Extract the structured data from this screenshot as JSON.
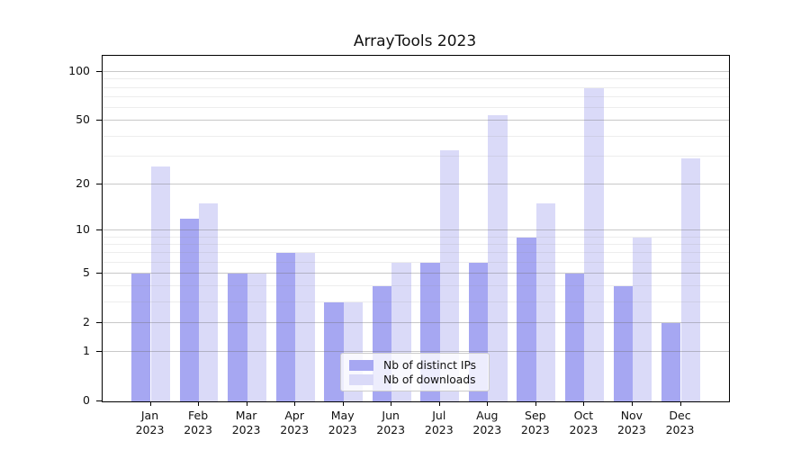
{
  "title": "ArrayTools 2023",
  "colors": {
    "ips_bar": "#a6a7f2",
    "downloads_bar": "#dadaf8",
    "axis": "#000000",
    "text": "#111111",
    "legend_border": "#cccccc"
  },
  "legend": {
    "items": [
      {
        "label": "Nb of distinct IPs",
        "series_key": "ips"
      },
      {
        "label": "Nb of downloads",
        "series_key": "downloads"
      }
    ]
  },
  "chart_data": {
    "type": "bar",
    "title": "ArrayTools 2023",
    "categories": [
      "Jan",
      "Feb",
      "Mar",
      "Apr",
      "May",
      "Jun",
      "Jul",
      "Aug",
      "Sep",
      "Oct",
      "Nov",
      "Dec"
    ],
    "year_label": "2023",
    "series": [
      {
        "name": "Nb of distinct IPs",
        "key": "ips",
        "values": [
          5,
          12,
          5,
          7,
          3,
          4,
          6,
          6,
          9,
          5,
          4,
          2
        ]
      },
      {
        "name": "Nb of downloads",
        "key": "downloads",
        "values": [
          26,
          15,
          5,
          7,
          3,
          6,
          33,
          54,
          15,
          80,
          9,
          29
        ]
      }
    ],
    "xlabel": "",
    "ylabel": "",
    "yscale": "log1p",
    "ylim": [
      0,
      126
    ],
    "yticks_major": [
      0,
      1,
      2,
      5,
      10,
      20,
      50,
      100
    ],
    "yticks_minor": [
      3,
      4,
      6,
      7,
      8,
      9,
      30,
      40,
      60,
      70,
      80,
      90
    ],
    "grid": true,
    "grid_above_bars": true,
    "legend_position": "lower center"
  }
}
